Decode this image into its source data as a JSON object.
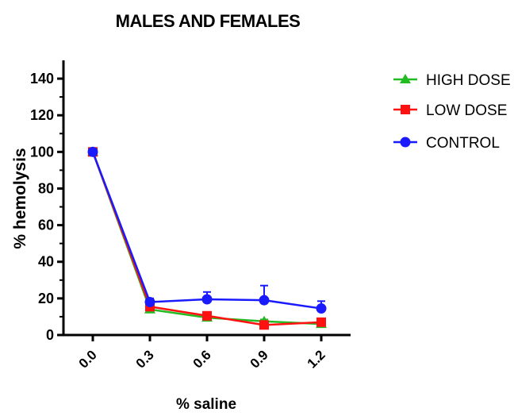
{
  "chart_data": {
    "type": "line",
    "title": "MALES AND FEMALES",
    "xlabel": "% saline",
    "ylabel": "% hemolysis",
    "x": [
      "0.0",
      "0.3",
      "0.6",
      "0.9",
      "1.2"
    ],
    "ylim": [
      0,
      150
    ],
    "yticks": [
      "0",
      "20",
      "40",
      "60",
      "80",
      "100",
      "120",
      "140"
    ],
    "grid": false,
    "legend_position": "top-right",
    "series": [
      {
        "name": "HIGH DOSE",
        "marker": "triangle",
        "color": "#22bb22",
        "values": [
          100,
          14,
          9.5,
          7.5,
          6
        ],
        "errors": [
          1,
          1.5,
          1,
          1,
          1
        ]
      },
      {
        "name": "LOW DOSE",
        "marker": "square",
        "color": "#ff1111",
        "values": [
          100,
          15.5,
          10.5,
          5.5,
          7
        ],
        "errors": [
          1.5,
          1.5,
          1.5,
          1,
          1
        ]
      },
      {
        "name": "CONTROL",
        "marker": "circle",
        "color": "#1a1aff",
        "values": [
          100,
          18,
          19.5,
          19,
          14.5
        ],
        "errors": [
          1.5,
          2,
          4,
          8,
          4
        ]
      }
    ]
  }
}
